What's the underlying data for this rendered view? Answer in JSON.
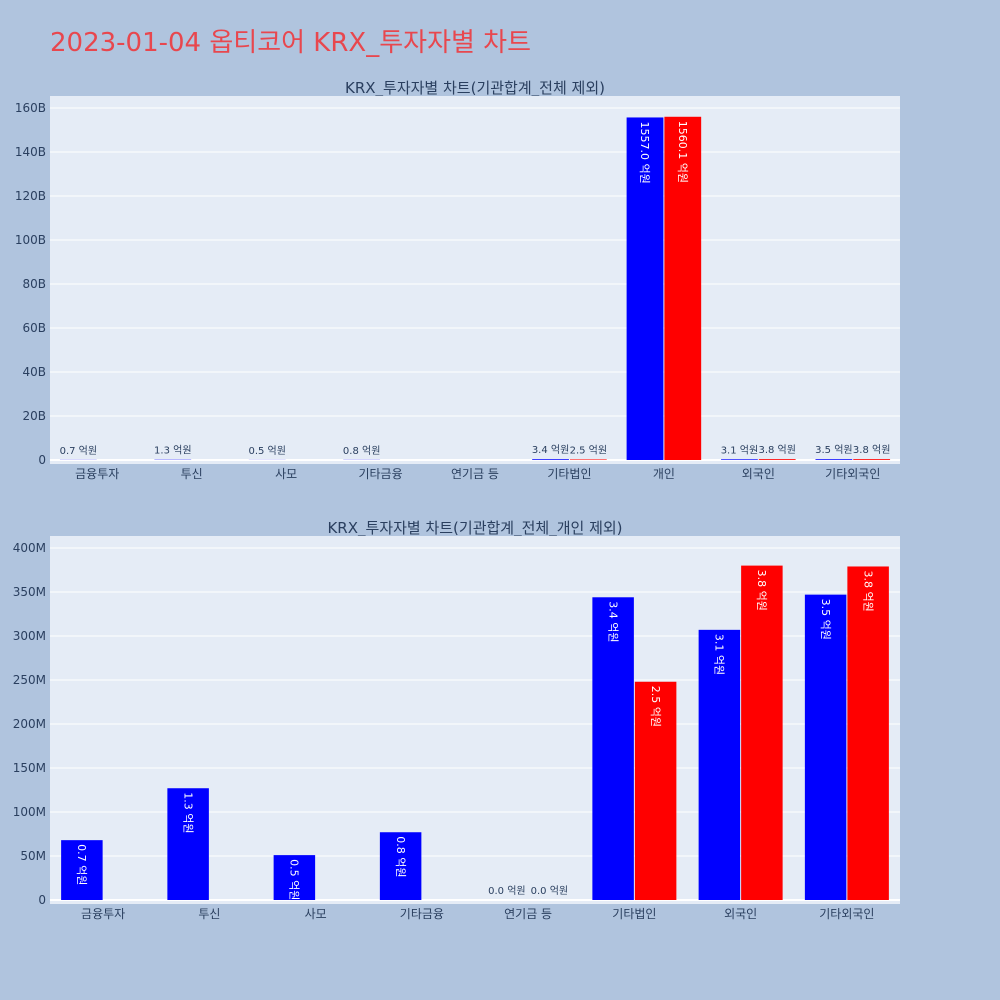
{
  "page": {
    "title": "2023-01-04 옵티코어 KRX_투자자별 차트",
    "background": "#b0c4de",
    "title_color": "#e8474e",
    "plot_background": "#e5ecf6"
  },
  "chart_data": [
    {
      "type": "bar",
      "title": "KRX_투자자별 차트(기관합계_전체 제외)",
      "categories": [
        "금융투자",
        "투신",
        "사모",
        "기타금융",
        "연기금 등",
        "기타법인",
        "개인",
        "외국인",
        "기타외국인"
      ],
      "ylim": [
        0,
        160000000000
      ],
      "yticks": [
        0,
        20000000000,
        40000000000,
        60000000000,
        80000000000,
        100000000000,
        120000000000,
        140000000000,
        160000000000
      ],
      "ytick_labels": [
        "0",
        "20B",
        "40B",
        "60B",
        "80B",
        "100B",
        "120B",
        "140B",
        "160B"
      ],
      "grid": true,
      "series": [
        {
          "color": "#0000ff",
          "values": [
            68000000,
            127000000,
            51000000,
            77000000,
            0,
            344000000,
            155700000000,
            307000000,
            347000000
          ],
          "labels": [
            "0.7 억원",
            "1.3 억원",
            "0.5 억원",
            "0.8 억원",
            "",
            "3.4 억원",
            "1557.0 억원",
            "3.1 억원",
            "3.5 억원"
          ]
        },
        {
          "color": "#ff0000",
          "values": [
            0,
            0,
            0,
            0,
            0,
            248000000,
            156010000000,
            380000000,
            379000000
          ],
          "labels": [
            "",
            "",
            "",
            "",
            "",
            "2.5 억원",
            "1560.1 억원",
            "3.8 억원",
            "3.8 억원"
          ]
        }
      ]
    },
    {
      "type": "bar",
      "title": "KRX_투자자별 차트(기관합계_전체_개인 제외)",
      "categories": [
        "금융투자",
        "투신",
        "사모",
        "기타금융",
        "연기금 등",
        "기타법인",
        "외국인",
        "기타외국인"
      ],
      "ylim": [
        0,
        400000000
      ],
      "yticks": [
        0,
        50000000,
        100000000,
        150000000,
        200000000,
        250000000,
        300000000,
        350000000,
        400000000
      ],
      "ytick_labels": [
        "0",
        "50M",
        "100M",
        "150M",
        "200M",
        "250M",
        "300M",
        "350M",
        "400M"
      ],
      "grid": true,
      "series": [
        {
          "color": "#0000ff",
          "values": [
            68000000,
            127000000,
            51000000,
            77000000,
            0,
            344000000,
            307000000,
            347000000
          ],
          "labels": [
            "0.7 억원",
            "1.3 억원",
            "0.5 억원",
            "0.8 억원",
            "0.0 억원",
            "3.4 억원",
            "3.1 억원",
            "3.5 억원"
          ]
        },
        {
          "color": "#ff0000",
          "values": [
            0,
            0,
            0,
            0,
            0,
            248000000,
            380000000,
            379000000
          ],
          "labels": [
            "",
            "",
            "",
            "",
            "0.0 억원",
            "2.5 억원",
            "3.8 억원",
            "3.8 억원"
          ]
        }
      ]
    }
  ]
}
